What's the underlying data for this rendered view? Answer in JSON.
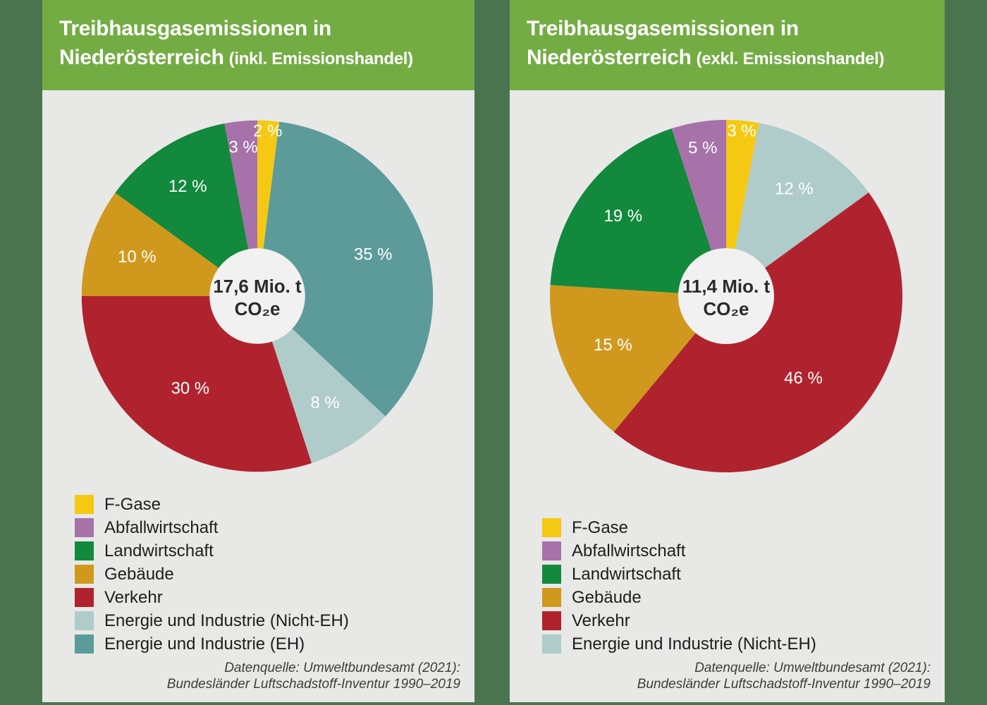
{
  "colors": {
    "background": "#4A7450",
    "panel": "#E8E8E7",
    "header": "#74AC44",
    "donut_hole": "#F1F1F1",
    "slice_label_text": "#FFFFFF",
    "center_text": "#2B2A28",
    "legend_text": "#1D1D1B",
    "source_text": "#3D3D3B"
  },
  "sectors": {
    "F-Gase": "#F5C813",
    "Abfallwirtschaft": "#A672A9",
    "Landwirtschaft": "#12893C",
    "Gebäude": "#D0991E",
    "Verkehr": "#B0232E",
    "Energie und Industrie (Nicht-EH)": "#AFCCCB",
    "Energie und Industrie (EH)": "#5C9B9A"
  },
  "source": {
    "line1": "Datenquelle: Umweltbundesamt (2021):",
    "line2": "Bundesländer Luftschadstoff-Inventur 1990–2019"
  },
  "chart_data": [
    {
      "type": "pie",
      "variant": "donut",
      "title_line1": "Treibhausgasemissionen in",
      "title_line2": "Niederösterreich",
      "title_note": "(inkl. Emissionshandel)",
      "center_label_line1": "17,6 Mio. t",
      "center_label_line2": "CO₂e",
      "unit": "%",
      "start": "12-o'clock",
      "direction": "clockwise",
      "slices": [
        {
          "label": "F-Gase",
          "value": 2,
          "display": "2 %",
          "label_r": 0.94
        },
        {
          "label": "Energie und Industrie (EH)",
          "value": 35,
          "display": "35 %",
          "label_r": 0.7
        },
        {
          "label": "Energie und Industrie (Nicht-EH)",
          "value": 8,
          "display": "8 %",
          "label_r": 0.72
        },
        {
          "label": "Verkehr",
          "value": 30,
          "display": "30 %",
          "label_r": 0.65
        },
        {
          "label": "Gebäude",
          "value": 10,
          "display": "10 %",
          "label_r": 0.72
        },
        {
          "label": "Landwirtschaft",
          "value": 12,
          "display": "12 %",
          "label_r": 0.74
        },
        {
          "label": "Abfallwirtschaft",
          "value": 3,
          "display": "3 %",
          "label_r": 0.85
        }
      ],
      "legend": [
        "F-Gase",
        "Abfallwirtschaft",
        "Landwirtschaft",
        "Gebäude",
        "Verkehr",
        "Energie und Industrie (Nicht-EH)",
        "Energie und Industrie (EH)"
      ]
    },
    {
      "type": "pie",
      "variant": "donut",
      "title_line1": "Treibhausgasemissionen in",
      "title_line2": "Niederösterreich",
      "title_note": "(exkl. Emissionshandel)",
      "center_label_line1": "11,4 Mio. t",
      "center_label_line2": "CO₂e",
      "unit": "%",
      "start": "12-o'clock",
      "direction": "clockwise",
      "slices": [
        {
          "label": "F-Gase",
          "value": 3,
          "display": "3 %",
          "label_r": 0.94
        },
        {
          "label": "Energie und Industrie (Nicht-EH)",
          "value": 12,
          "display": "12 %",
          "label_r": 0.72
        },
        {
          "label": "Verkehr",
          "value": 46,
          "display": "46 %",
          "label_r": 0.64
        },
        {
          "label": "Gebäude",
          "value": 15,
          "display": "15 %",
          "label_r": 0.7
        },
        {
          "label": "Landwirtschaft",
          "value": 19,
          "display": "19 %",
          "label_r": 0.74
        },
        {
          "label": "Abfallwirtschaft",
          "value": 5,
          "display": "5 %",
          "label_r": 0.85
        }
      ],
      "legend": [
        "F-Gase",
        "Abfallwirtschaft",
        "Landwirtschaft",
        "Gebäude",
        "Verkehr",
        "Energie und Industrie (Nicht-EH)"
      ]
    }
  ]
}
